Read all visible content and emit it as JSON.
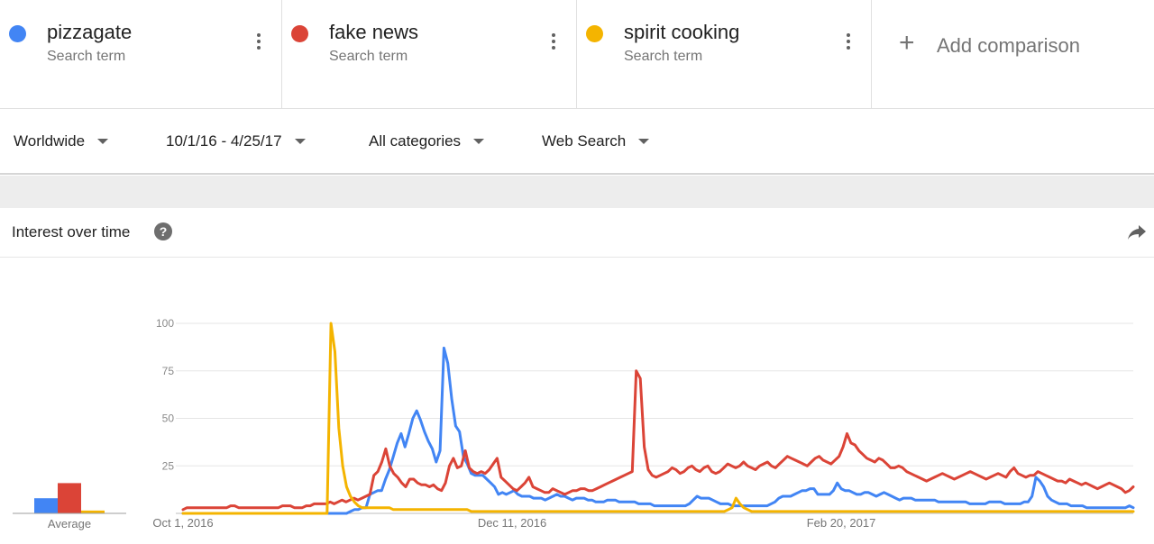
{
  "terms": [
    {
      "name": "pizzagate",
      "sub": "Search term",
      "color": "#4285f4"
    },
    {
      "name": "fake news",
      "sub": "Search term",
      "color": "#db4437"
    },
    {
      "name": "spirit cooking",
      "sub": "Search term",
      "color": "#f4b400"
    }
  ],
  "add_comparison": {
    "plus": "+",
    "label": "Add comparison"
  },
  "filters": {
    "region": "Worldwide",
    "date_range": "10/1/16 - 4/25/17",
    "category": "All categories",
    "search_type": "Web Search"
  },
  "panel": {
    "title": "Interest over time",
    "help": "?"
  },
  "icons": {
    "more": "more-vert-icon",
    "help": "help-icon",
    "share": "share-icon",
    "caret": "caret-down-icon"
  },
  "chart_data": {
    "type": "line",
    "x_tick_labels": [
      "Oct 1, 2016",
      "Dec 11, 2016",
      "Feb 20, 2017"
    ],
    "y_ticks": [
      25,
      50,
      75,
      100
    ],
    "ylim": [
      0,
      100
    ],
    "grid": true,
    "average": {
      "label": "Average",
      "values": [
        8,
        16,
        1.5
      ]
    },
    "series": [
      {
        "name": "pizzagate",
        "color": "#4285f4",
        "values": [
          0,
          0,
          0,
          0,
          0,
          0,
          0,
          0,
          0,
          0,
          0,
          0,
          0,
          0,
          0,
          0,
          0,
          0,
          0,
          0,
          0,
          0,
          0,
          0,
          0,
          0,
          0,
          0,
          0,
          0,
          0,
          0,
          0,
          0,
          0,
          0,
          0,
          0,
          0,
          0,
          0,
          0,
          0,
          1,
          2,
          2,
          3,
          3,
          10,
          11,
          12,
          12,
          18,
          23,
          30,
          37,
          42,
          35,
          42,
          50,
          54,
          49,
          43,
          38,
          34,
          27,
          33,
          87,
          79,
          60,
          46,
          43,
          30,
          26,
          21,
          20,
          20,
          20,
          18,
          16,
          14,
          10,
          11,
          10,
          11,
          12,
          10,
          9,
          9,
          9,
          8,
          8,
          8,
          7,
          8,
          9,
          10,
          9,
          9,
          8,
          7,
          8,
          8,
          8,
          7,
          7,
          6,
          6,
          6,
          7,
          7,
          7,
          6,
          6,
          6,
          6,
          6,
          5,
          5,
          5,
          5,
          4,
          4,
          4,
          4,
          4,
          4,
          4,
          4,
          4,
          5,
          7,
          9,
          8,
          8,
          8,
          7,
          6,
          5,
          5,
          5,
          4,
          4,
          4,
          4,
          4,
          4,
          4,
          4,
          4,
          4,
          5,
          6,
          8,
          9,
          9,
          9,
          10,
          11,
          12,
          12,
          13,
          13,
          10,
          10,
          10,
          10,
          12,
          16,
          13,
          12,
          12,
          11,
          10,
          10,
          11,
          11,
          10,
          9,
          10,
          11,
          10,
          9,
          8,
          7,
          8,
          8,
          8,
          7,
          7,
          7,
          7,
          7,
          7,
          6,
          6,
          6,
          6,
          6,
          6,
          6,
          6,
          5,
          5,
          5,
          5,
          5,
          6,
          6,
          6,
          6,
          5,
          5,
          5,
          5,
          5,
          6,
          6,
          9,
          19,
          17,
          14,
          9,
          7,
          6,
          5,
          5,
          5,
          4,
          4,
          4,
          4,
          3,
          3,
          3,
          3,
          3,
          3,
          3,
          3,
          3,
          3,
          3,
          4,
          3
        ]
      },
      {
        "name": "fake news",
        "color": "#db4437",
        "values": [
          2,
          3,
          3,
          3,
          3,
          3,
          3,
          3,
          3,
          3,
          3,
          3,
          4,
          4,
          3,
          3,
          3,
          3,
          3,
          3,
          3,
          3,
          3,
          3,
          3,
          4,
          4,
          4,
          3,
          3,
          3,
          4,
          4,
          5,
          5,
          5,
          5,
          6,
          5,
          6,
          7,
          6,
          7,
          8,
          7,
          8,
          9,
          10,
          20,
          22,
          27,
          34,
          25,
          21,
          19,
          16,
          14,
          18,
          18,
          16,
          15,
          15,
          14,
          15,
          13,
          12,
          16,
          25,
          29,
          24,
          25,
          33,
          24,
          22,
          21,
          22,
          21,
          23,
          26,
          29,
          19,
          17,
          15,
          13,
          12,
          14,
          16,
          19,
          14,
          13,
          12,
          11,
          11,
          13,
          12,
          11,
          10,
          11,
          12,
          12,
          13,
          13,
          12,
          12,
          13,
          14,
          15,
          16,
          17,
          18,
          19,
          20,
          21,
          22,
          75,
          71,
          35,
          23,
          20,
          19,
          20,
          21,
          22,
          24,
          23,
          21,
          22,
          24,
          25,
          23,
          22,
          24,
          25,
          22,
          21,
          22,
          24,
          26,
          25,
          24,
          25,
          27,
          25,
          24,
          23,
          25,
          26,
          27,
          25,
          24,
          26,
          28,
          30,
          29,
          28,
          27,
          26,
          25,
          27,
          29,
          30,
          28,
          27,
          26,
          28,
          30,
          35,
          42,
          37,
          36,
          33,
          31,
          29,
          28,
          27,
          29,
          28,
          26,
          24,
          24,
          25,
          24,
          22,
          21,
          20,
          19,
          18,
          17,
          18,
          19,
          20,
          21,
          20,
          19,
          18,
          19,
          20,
          21,
          22,
          21,
          20,
          19,
          18,
          19,
          20,
          21,
          20,
          19,
          22,
          24,
          21,
          20,
          19,
          20,
          20,
          22,
          21,
          20,
          19,
          18,
          17,
          17,
          16,
          18,
          17,
          16,
          15,
          16,
          15,
          14,
          13,
          14,
          15,
          16,
          15,
          14,
          13,
          11,
          12,
          14
        ]
      },
      {
        "name": "spirit cooking",
        "color": "#f4b400",
        "values": [
          0,
          0,
          0,
          0,
          0,
          0,
          0,
          0,
          0,
          0,
          0,
          0,
          0,
          0,
          0,
          0,
          0,
          0,
          0,
          0,
          0,
          0,
          0,
          0,
          0,
          0,
          0,
          0,
          0,
          0,
          0,
          0,
          0,
          0,
          0,
          0,
          0,
          0,
          100,
          85,
          45,
          25,
          14,
          9,
          6,
          4,
          3,
          3,
          3,
          3,
          3,
          3,
          3,
          3,
          2,
          2,
          2,
          2,
          2,
          2,
          2,
          2,
          2,
          2,
          2,
          2,
          2,
          2,
          2,
          2,
          2,
          2,
          2,
          2,
          1,
          1,
          1,
          1,
          1,
          1,
          1,
          1,
          1,
          1,
          1,
          1,
          1,
          1,
          1,
          1,
          1,
          1,
          1,
          1,
          1,
          1,
          1,
          1,
          1,
          1,
          1,
          1,
          1,
          1,
          1,
          1,
          1,
          1,
          1,
          1,
          1,
          1,
          1,
          1,
          1,
          1,
          1,
          1,
          1,
          1,
          1,
          1,
          1,
          1,
          1,
          1,
          1,
          1,
          1,
          1,
          1,
          1,
          1,
          1,
          1,
          1,
          1,
          1,
          1,
          1,
          2,
          3,
          8,
          5,
          3,
          2,
          1,
          1,
          1,
          1,
          1,
          1,
          1,
          1,
          1,
          1,
          1,
          1,
          1,
          1,
          1,
          1,
          1,
          1,
          1,
          1,
          1,
          1,
          1,
          1,
          1,
          1,
          1,
          1,
          1,
          1,
          1,
          1,
          1,
          1,
          1,
          1,
          1,
          1,
          1,
          1,
          1,
          1,
          1,
          1,
          1,
          1,
          1,
          1,
          1,
          1,
          1,
          1,
          1,
          1,
          1,
          1,
          1,
          1,
          1,
          1,
          1,
          1,
          1,
          1,
          1,
          1,
          1,
          1,
          1,
          1,
          1,
          1,
          1,
          1,
          1,
          1,
          1,
          1,
          1,
          1,
          1,
          1,
          1,
          1,
          1,
          1,
          1,
          1,
          1,
          1,
          1,
          1,
          1,
          1,
          1,
          1,
          1,
          1,
          1
        ]
      }
    ]
  }
}
